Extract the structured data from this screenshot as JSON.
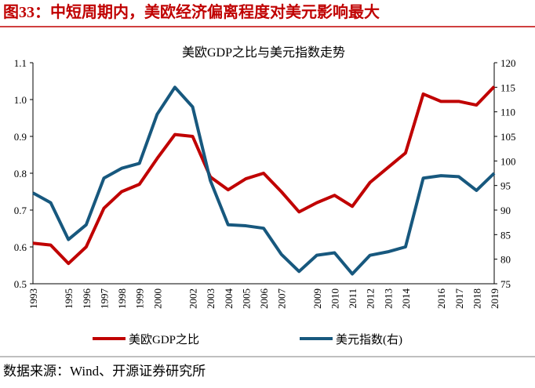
{
  "header": {
    "title": "图33：中短周期内，美欧经济偏离程度对美元影响最大"
  },
  "chart_data": {
    "type": "line",
    "title": "美欧GDP之比与美元指数走势",
    "categories": [
      "1993",
      null,
      "1995",
      "1996",
      "1997",
      "1998",
      "1999",
      "2000",
      null,
      "2002",
      "2003",
      "2004",
      "2005",
      "2006",
      "2007",
      null,
      "2009",
      "2010",
      "2011",
      "2012",
      "2013",
      "2014",
      null,
      "2016",
      "2017",
      "2018",
      "2019"
    ],
    "series": [
      {
        "name": "美欧GDP之比",
        "color": "#c00000",
        "values": [
          0.61,
          0.605,
          0.555,
          0.6,
          0.705,
          0.75,
          0.77,
          0.84,
          0.905,
          0.9,
          0.79,
          0.755,
          0.785,
          0.8,
          0.75,
          0.695,
          0.72,
          0.74,
          0.71,
          0.775,
          0.815,
          0.855,
          1.015,
          0.995,
          0.995,
          0.985,
          1.035
        ]
      },
      {
        "name": "美元指数(右)",
        "color": "#17587e",
        "axis": "y2",
        "values": [
          93.5,
          91.5,
          84,
          87,
          96.5,
          98.5,
          99.5,
          109.5,
          115,
          111,
          96,
          87,
          86.8,
          86.3,
          81,
          77.5,
          80.8,
          81.3,
          77,
          80.8,
          81.5,
          82.5,
          96.5,
          97,
          96.8,
          94,
          97.5
        ]
      }
    ],
    "ylim": [
      0.5,
      1.1
    ],
    "yticks": [
      0.5,
      0.6,
      0.7,
      0.8,
      0.9,
      {
        "value": 1,
        "label": "1.0"
      },
      1.1
    ],
    "y2lim": [
      75,
      120
    ],
    "y2ticks": [
      75,
      80,
      85,
      90,
      95,
      100,
      105,
      110,
      115,
      120
    ]
  },
  "footer": {
    "source": "数据来源：Wind、开源证券研究所"
  }
}
